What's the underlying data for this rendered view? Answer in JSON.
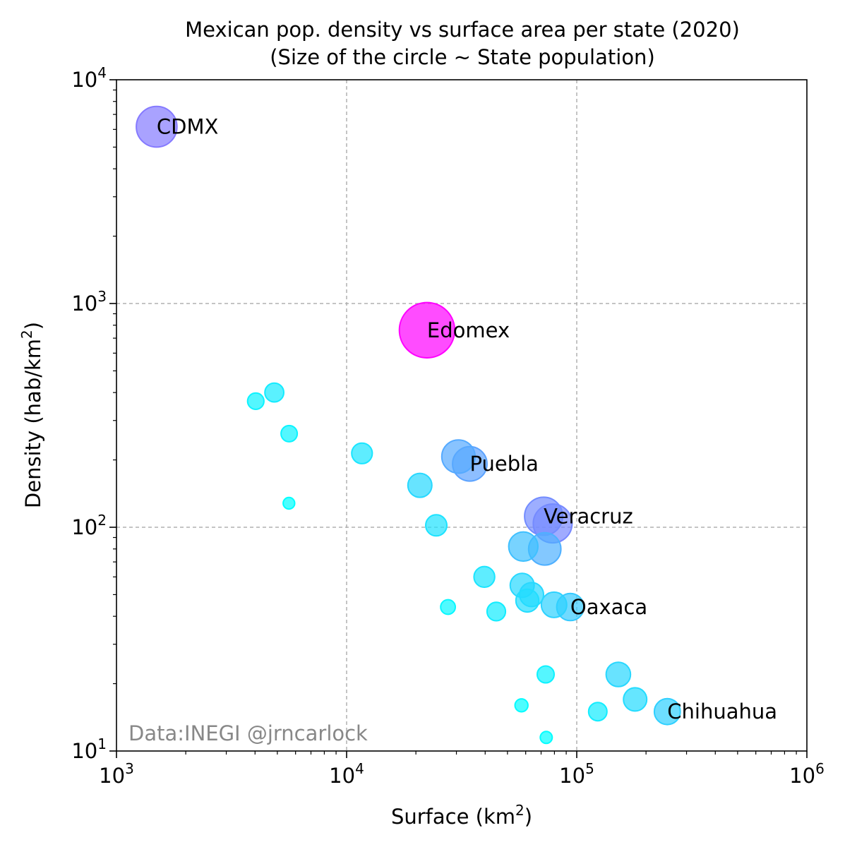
{
  "chart_data": {
    "type": "scatter",
    "title_line1": "Mexican pop. density vs surface area per state (2020)",
    "title_line2": "(Size of the circle ~ State population)",
    "xlabel": {
      "base": "Surface (km",
      "sup": "2",
      "end": ")"
    },
    "ylabel": {
      "base": "Density (hab/km",
      "sup": "2",
      "end": ")"
    },
    "xscale": "log",
    "yscale": "log",
    "xlim": [
      1000,
      1000000
    ],
    "ylim": [
      10,
      10000
    ],
    "grid": true,
    "x_ticks": [
      {
        "value": 1000,
        "base": "10",
        "exp": "3"
      },
      {
        "value": 10000,
        "base": "10",
        "exp": "4"
      },
      {
        "value": 100000,
        "base": "10",
        "exp": "5"
      },
      {
        "value": 1000000,
        "base": "10",
        "exp": "6"
      }
    ],
    "y_ticks": [
      {
        "value": 10,
        "base": "10",
        "exp": "1"
      },
      {
        "value": 100,
        "base": "10",
        "exp": "2"
      },
      {
        "value": 1000,
        "base": "10",
        "exp": "3"
      },
      {
        "value": 10000,
        "base": "10",
        "exp": "4"
      }
    ],
    "colormap": {
      "low": "#00ffff",
      "high": "#ff00ff"
    },
    "watermark": "Data:INEGI @jrncarlock",
    "points": [
      {
        "label": "CDMX",
        "surface": 1495,
        "density": 6163,
        "population_m": 9.21
      },
      {
        "label": "Edomex",
        "surface": 22351,
        "density": 760,
        "population_m": 16.99
      },
      {
        "label": "Puebla",
        "surface": 34309,
        "density": 192,
        "population_m": 6.58
      },
      {
        "label": "Veracruz",
        "surface": 71826,
        "density": 112,
        "population_m": 8.06
      },
      {
        "label": "Oaxaca",
        "surface": 93793,
        "density": 44,
        "population_m": 4.13
      },
      {
        "label": "Chihuahua",
        "surface": 247460,
        "density": 15,
        "population_m": 3.74
      },
      {
        "label": "",
        "surface": 4850,
        "density": 400,
        "population_m": 2.0
      },
      {
        "label": "",
        "surface": 4028,
        "density": 366,
        "population_m": 1.48
      },
      {
        "label": "",
        "surface": 5627,
        "density": 262,
        "population_m": 1.47
      },
      {
        "label": "",
        "surface": 5617,
        "density": 128,
        "population_m": 0.74
      },
      {
        "label": "",
        "surface": 11666,
        "density": 214,
        "population_m": 2.37
      },
      {
        "label": "",
        "surface": 20816,
        "density": 154,
        "population_m": 3.2
      },
      {
        "label": "",
        "surface": 30608,
        "density": 207,
        "population_m": 6.17
      },
      {
        "label": "",
        "surface": 24531,
        "density": 102,
        "population_m": 2.5
      },
      {
        "label": "",
        "surface": 27575,
        "density": 44,
        "population_m": 1.2
      },
      {
        "label": "",
        "surface": 39671,
        "density": 60,
        "population_m": 2.4
      },
      {
        "label": "",
        "surface": 44705,
        "density": 42,
        "population_m": 1.9
      },
      {
        "label": "",
        "surface": 58592,
        "density": 82,
        "population_m": 4.75
      },
      {
        "label": "",
        "surface": 72611,
        "density": 80,
        "population_m": 5.8
      },
      {
        "label": "",
        "surface": 78588,
        "density": 104,
        "population_m": 8.35
      },
      {
        "label": "",
        "surface": 57924,
        "density": 55,
        "population_m": 3.2
      },
      {
        "label": "",
        "surface": 63621,
        "density": 50,
        "population_m": 3.2
      },
      {
        "label": "",
        "surface": 60983,
        "density": 47,
        "population_m": 2.9
      },
      {
        "label": "",
        "surface": 79671,
        "density": 45,
        "population_m": 3.6
      },
      {
        "label": "",
        "surface": 73311,
        "density": 22,
        "population_m": 1.6
      },
      {
        "label": "",
        "surface": 57507,
        "density": 16,
        "population_m": 0.93
      },
      {
        "label": "",
        "surface": 73677,
        "density": 11.5,
        "population_m": 0.8
      },
      {
        "label": "",
        "surface": 151595,
        "density": 22,
        "population_m": 3.3
      },
      {
        "label": "",
        "surface": 123451,
        "density": 15,
        "population_m": 1.86
      },
      {
        "label": "",
        "surface": 179355,
        "density": 17,
        "population_m": 3.0
      }
    ]
  }
}
